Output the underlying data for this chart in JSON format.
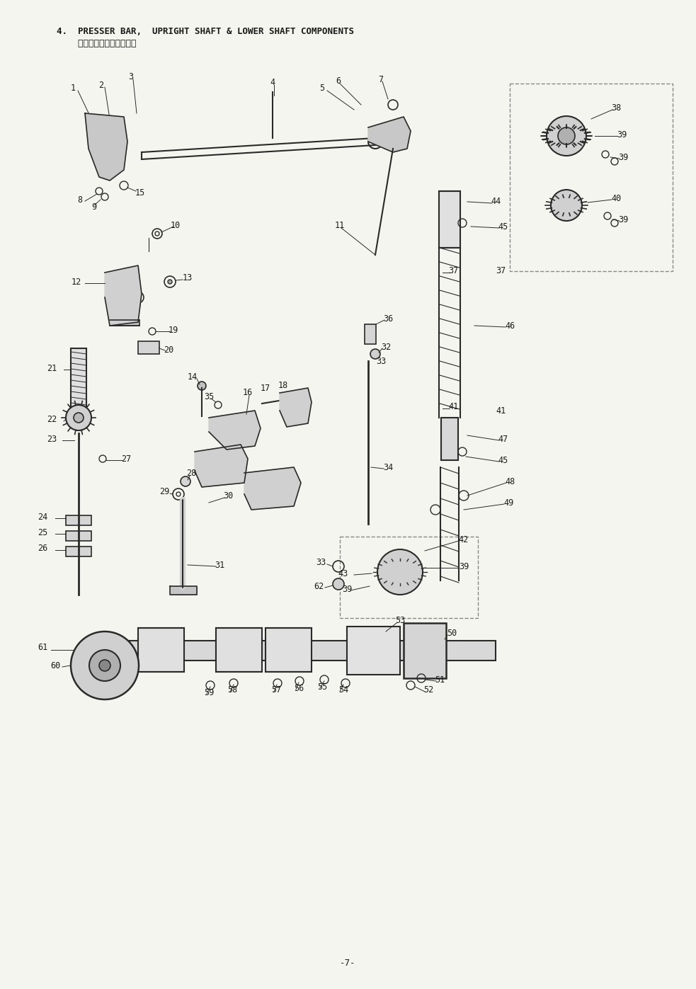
{
  "title_line1": "4.  PRESSER BAR,  UPRIGHT SHAFT & LOWER SHAFT COMPONENTS",
  "title_line2": "    押え棒・立軸・下軸関係",
  "page_number": "-7-",
  "bg_color": "#f5f5f0",
  "line_color": "#2a2a2a",
  "text_color": "#1a1a1a",
  "title_fontsize": 9,
  "label_fontsize": 8.5,
  "fig_width": 9.83,
  "fig_height": 13.97
}
